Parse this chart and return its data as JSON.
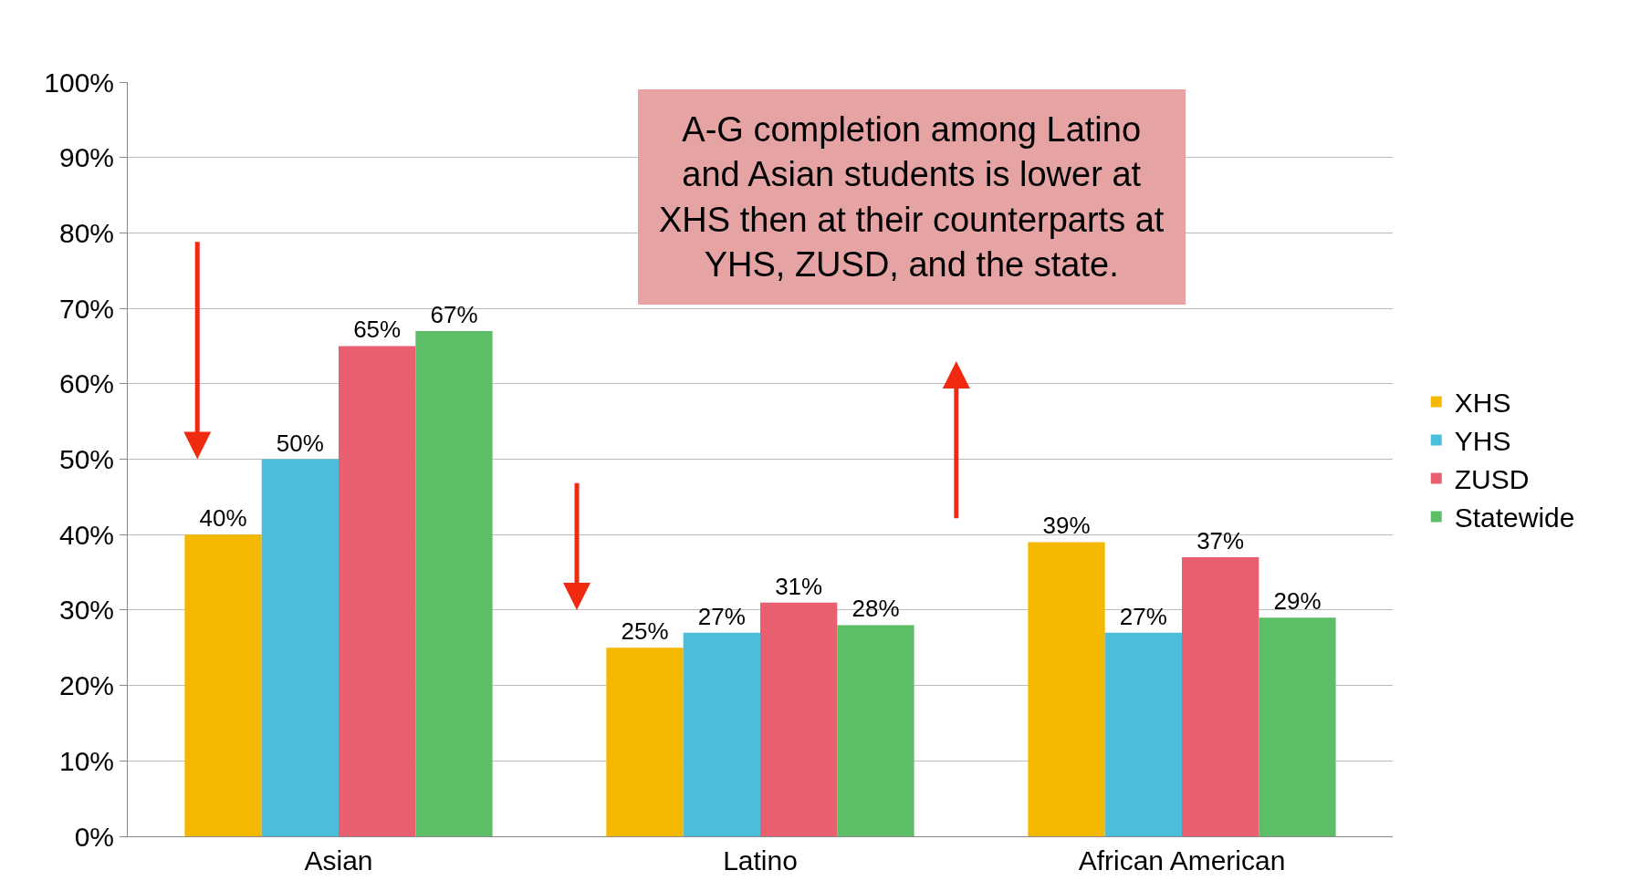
{
  "chart_data": {
    "type": "bar",
    "categories": [
      "Asian",
      "Latino",
      "African American"
    ],
    "series": [
      {
        "name": "XHS",
        "color": "#f5b800",
        "values": [
          40,
          25,
          39
        ]
      },
      {
        "name": "YHS",
        "color": "#4bbfda",
        "values": [
          50,
          27,
          27
        ]
      },
      {
        "name": "ZUSD",
        "color": "#e8606f",
        "values": [
          65,
          31,
          37
        ]
      },
      {
        "name": "Statewide",
        "color": "#5cbf68",
        "values": [
          67,
          28,
          29
        ]
      }
    ],
    "ylim": [
      0,
      100
    ],
    "yticks": [
      {
        "value": 0,
        "label": "0%"
      },
      {
        "value": 10,
        "label": "10%"
      },
      {
        "value": 20,
        "label": "20%"
      },
      {
        "value": 30,
        "label": "30%"
      },
      {
        "value": 40,
        "label": "40%"
      },
      {
        "value": 50,
        "label": "50%"
      },
      {
        "value": 60,
        "label": "60%"
      },
      {
        "value": 70,
        "label": "70%"
      },
      {
        "value": 80,
        "label": "80%"
      },
      {
        "value": 90,
        "label": "90%"
      },
      {
        "value": 100,
        "label": "100%"
      }
    ],
    "value_labels": [
      [
        "40%",
        "25%",
        "39%"
      ],
      [
        "50%",
        "27%",
        "27%"
      ],
      [
        "65%",
        "31%",
        "37%"
      ],
      [
        "67%",
        "28%",
        "29%"
      ]
    ],
    "grid": "y",
    "legend": "right",
    "annotations": [
      "A-G completion among Latino\nand Asian students is lower at\nXHS then at their counterparts at\nYHS, ZUSD, and the state."
    ]
  }
}
